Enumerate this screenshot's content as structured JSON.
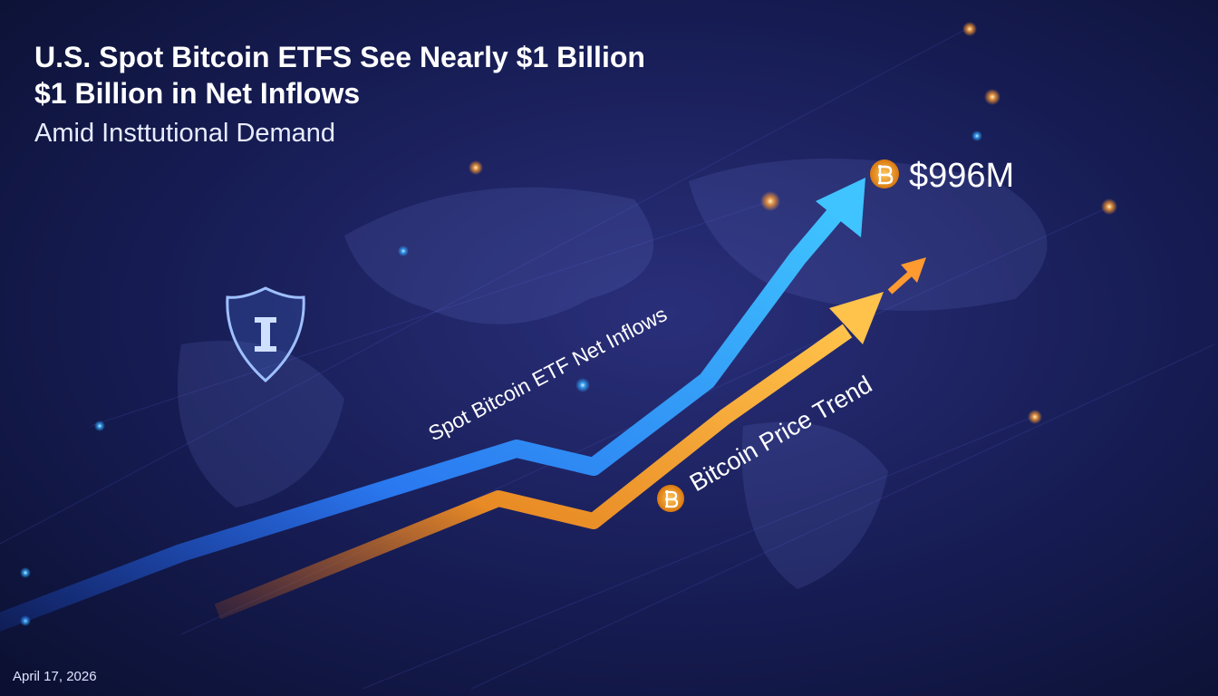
{
  "header": {
    "title_line1": "U.S. Spot Bitcoin ETFS See Nearly $1 Billion",
    "title_line2": "$1 Billion in Net Inflows",
    "subtitle": "Amid Insttutional Demand"
  },
  "callout": "$996M",
  "labels": {
    "inflows": "Spot Bitcoin ETF Net Inflows",
    "price": "Bitcoin Price Trend"
  },
  "date": "April 17, 2026"
}
